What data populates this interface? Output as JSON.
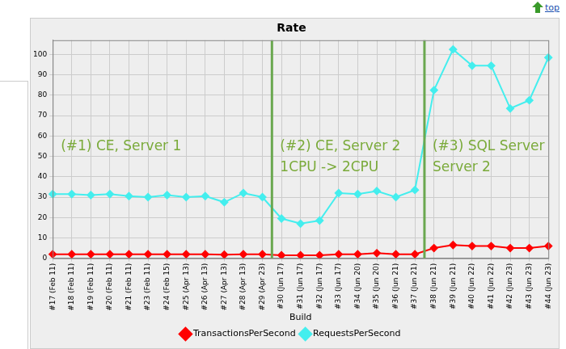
{
  "page": {
    "link": "top"
  },
  "chart_data": {
    "type": "line",
    "title": "Rate",
    "x_label": "Build",
    "categories": [
      "#17 (Feb 11)",
      "#18 (Feb 11)",
      "#19 (Feb 11)",
      "#20 (Feb 11)",
      "#21 (Feb 11)",
      "#23 (Feb 11)",
      "#24 (Feb 15)",
      "#25 (Apr 13)",
      "#26 (Apr 13)",
      "#27 (Apr 13)",
      "#28 (Apr 13)",
      "#29 (Apr 23)",
      "#30 (Jun 17)",
      "#31 (Jun 17)",
      "#32 (Jun 17)",
      "#33 (Jun 17)",
      "#34 (Jun 20)",
      "#35 (Jun 20)",
      "#36 (Jun 21)",
      "#37 (Jun 21)",
      "#38 (Jun 21)",
      "#39 (Jun 21)",
      "#40 (Jun 22)",
      "#41 (Jun 22)",
      "#42 (Jun 23)",
      "#43 (Jun 23)",
      "#44 (Jun 23)"
    ],
    "series": [
      {
        "name": "TransactionsPerSecond",
        "color": "#ff0000",
        "values": [
          2,
          2,
          2,
          2,
          2,
          2,
          2,
          2,
          2,
          1.8,
          2,
          2,
          1.5,
          1.5,
          1.5,
          2,
          2,
          2.5,
          2,
          2,
          5,
          6.5,
          6,
          6,
          5,
          5,
          6
        ]
      },
      {
        "name": "RequestsPerSecond",
        "color": "#44eeee",
        "values": [
          31.5,
          31.5,
          31,
          31.5,
          30.5,
          30,
          31,
          30,
          30.5,
          27.5,
          32,
          30,
          19.5,
          17,
          18.5,
          32,
          31.5,
          33,
          30,
          33.5,
          82.5,
          102.5,
          94.5,
          94.5,
          73.5,
          77.5,
          98.5
        ]
      }
    ],
    "ylim": [
      0,
      107
    ],
    "yticks": [
      0,
      10,
      20,
      30,
      40,
      50,
      60,
      70,
      80,
      90,
      100
    ],
    "grid": true,
    "legend": "bottom",
    "marker": "diamond",
    "annotations": [
      {
        "from": "#17 (Feb 11)",
        "text": [
          "(#1) CE, Server 1"
        ]
      },
      {
        "from": "#30 (Jun 17)",
        "text": [
          "(#2) CE, Server 2",
          "1CPU -> 2CPU"
        ]
      },
      {
        "from": "#38 (Jun 21)",
        "text": [
          "(#3) SQL Server",
          "Server 2"
        ]
      }
    ]
  }
}
